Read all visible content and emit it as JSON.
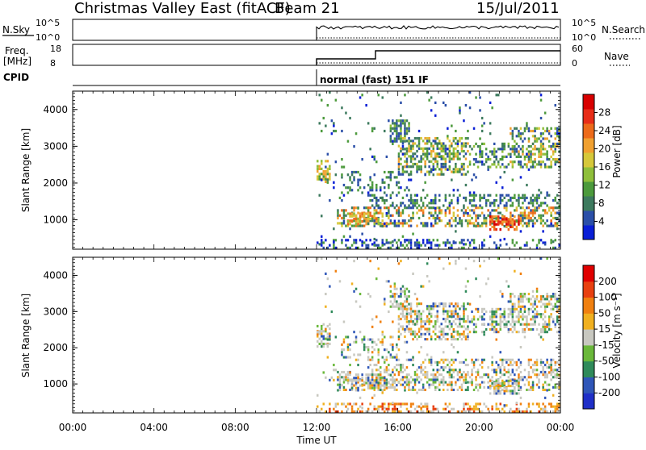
{
  "header": {
    "title": "Christmas Valley East (fitACF)",
    "beam": "Beam 21",
    "date": "15/Jul/2011"
  },
  "top_panels": {
    "nsky_label": "N.Sky",
    "nsky_ticks": [
      "10^5",
      "10^0"
    ],
    "nsearch_label": "N.Search",
    "nsearch_ticks": [
      "10^5",
      "10^0"
    ],
    "freq_label": "Freq.",
    "freq_unit": "[MHz]",
    "freq_ticks": [
      "18",
      "8"
    ],
    "nave_label": "Nave",
    "nave_ticks": [
      "60",
      "0"
    ],
    "cpid_label": "CPID",
    "cpid_text": "normal (fast) 151 IF"
  },
  "chart_data": [
    {
      "type": "heatmap",
      "quantity": "Power",
      "ylabel": "Slant Range [km]",
      "xlabel": "Time UT",
      "x_ticks": [
        "00:00",
        "04:00",
        "08:00",
        "12:00",
        "16:00",
        "20:00",
        "00:00"
      ],
      "xlim_hours": [
        0,
        24
      ],
      "ylim": [
        200,
        4500
      ],
      "y_ticks": [
        1000,
        2000,
        3000,
        4000
      ],
      "data_start_hour": 12,
      "colorbar": {
        "label": "Power [dB]",
        "ticks": [
          "4",
          "8",
          "12",
          "16",
          "20",
          "24",
          "28"
        ],
        "colors": [
          "#0a1fd6",
          "#2b4fa8",
          "#3d7a5e",
          "#4c9a3c",
          "#8fbf3a",
          "#d6c83a",
          "#f0a030",
          "#ec6a1a",
          "#e82d18",
          "#d80000"
        ]
      }
    },
    {
      "type": "heatmap",
      "quantity": "Velocity",
      "ylabel": "Slant Range [km]",
      "xlabel": "Time UT",
      "x_ticks": [
        "00:00",
        "04:00",
        "08:00",
        "12:00",
        "16:00",
        "20:00",
        "00:00"
      ],
      "xlim_hours": [
        0,
        24
      ],
      "ylim": [
        200,
        4500
      ],
      "y_ticks": [
        1000,
        2000,
        3000,
        4000
      ],
      "data_start_hour": 12,
      "colorbar": {
        "label": "Velocity [m s⁻¹]",
        "ticks": [
          "200",
          "100",
          "50",
          "15",
          "-15",
          "-50",
          "-100",
          "-200"
        ],
        "colors": [
          "#1f2fc8",
          "#2f56b8",
          "#2f8a5a",
          "#6ab83a",
          "#c8c8c0",
          "#f0b020",
          "#f08010",
          "#e84010",
          "#e00000"
        ]
      }
    }
  ],
  "x_axis": {
    "ticks": [
      "00:00",
      "04:00",
      "08:00",
      "12:00",
      "16:00",
      "20:00",
      "00:00"
    ],
    "label": "Time UT"
  }
}
